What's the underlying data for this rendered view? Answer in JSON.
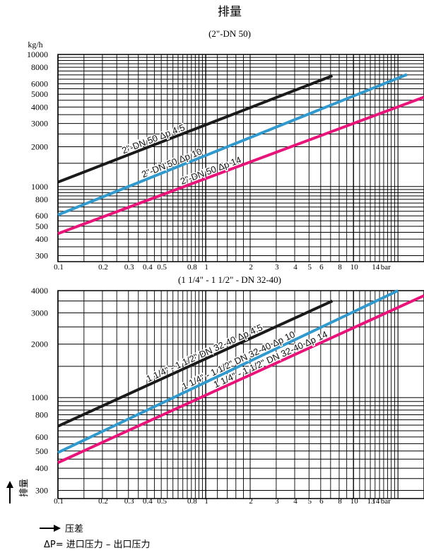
{
  "title": "排量",
  "chart_data": [
    {
      "type": "line",
      "subtitle": "(2\"-DN 50)",
      "ylabel": "kg/h",
      "y_scale": "log",
      "x_scale": "log",
      "ylim": [
        270,
        10000
      ],
      "xlim": [
        0.1,
        30
      ],
      "y_ticks": [
        {
          "value": 300,
          "label": "300"
        },
        {
          "value": 400,
          "label": "400"
        },
        {
          "value": 500,
          "label": "500"
        },
        {
          "value": 600,
          "label": "600"
        },
        {
          "value": 800,
          "label": "800"
        },
        {
          "value": 1000,
          "label": "1000"
        },
        {
          "value": 2000,
          "label": "2000"
        },
        {
          "value": 3000,
          "label": "3000"
        },
        {
          "value": 4000,
          "label": "4000"
        },
        {
          "value": 5000,
          "label": "5000"
        },
        {
          "value": 6000,
          "label": "6000"
        },
        {
          "value": 8000,
          "label": "8000"
        },
        {
          "value": 10000,
          "label": "10000"
        }
      ],
      "x_ticks": [
        {
          "value": 0.1,
          "label": "0.1"
        },
        {
          "value": 0.2,
          "label": "0.2"
        },
        {
          "value": 0.3,
          "label": "0.3"
        },
        {
          "value": 0.4,
          "label": "0.4"
        },
        {
          "value": 0.5,
          "label": "0.5"
        },
        {
          "value": 0.8,
          "label": "0.8"
        },
        {
          "value": 1,
          "label": "1"
        },
        {
          "value": 2,
          "label": "2"
        },
        {
          "value": 3,
          "label": "3"
        },
        {
          "value": 4,
          "label": "4"
        },
        {
          "value": 5,
          "label": "5"
        },
        {
          "value": 6,
          "label": "6"
        },
        {
          "value": 8,
          "label": "8"
        },
        {
          "value": 10,
          "label": "10"
        },
        {
          "value": 14,
          "label": "14"
        }
      ],
      "x_unit": "bar",
      "series": [
        {
          "name": "2\"-DN 50 Δp 4.5",
          "color": "#1a1a1a",
          "x": [
            0.1,
            7.2
          ],
          "y": [
            1080,
            6900
          ]
        },
        {
          "name": "2\"-DN 50 Δp 10",
          "color": "#3399cc",
          "x": [
            0.1,
            23
          ],
          "y": [
            610,
            7050
          ]
        },
        {
          "name": "2\"-DN 50 Δp 14",
          "color": "#e6157a",
          "x": [
            0.1,
            30
          ],
          "y": [
            440,
            4750
          ]
        }
      ]
    },
    {
      "type": "line",
      "subtitle": "(1 1/4\" - 1 1/2\" - DN 32-40)",
      "ylabel": "",
      "y_scale": "log",
      "x_scale": "log",
      "ylim": [
        270,
        4000
      ],
      "xlim": [
        0.1,
        30
      ],
      "y_ticks": [
        {
          "value": 300,
          "label": "300"
        },
        {
          "value": 400,
          "label": "400"
        },
        {
          "value": 500,
          "label": "500"
        },
        {
          "value": 600,
          "label": "600"
        },
        {
          "value": 800,
          "label": "800"
        },
        {
          "value": 1000,
          "label": "1000"
        },
        {
          "value": 2000,
          "label": "2000"
        },
        {
          "value": 3000,
          "label": "3000"
        },
        {
          "value": 4000,
          "label": "4000"
        }
      ],
      "x_ticks": [
        {
          "value": 0.1,
          "label": "0.1"
        },
        {
          "value": 0.2,
          "label": "0.2"
        },
        {
          "value": 0.3,
          "label": "0.3"
        },
        {
          "value": 0.4,
          "label": "0.4"
        },
        {
          "value": 0.5,
          "label": "0.5"
        },
        {
          "value": 0.8,
          "label": "0.8"
        },
        {
          "value": 1,
          "label": "1"
        },
        {
          "value": 2,
          "label": "2"
        },
        {
          "value": 3,
          "label": "3"
        },
        {
          "value": 4,
          "label": "4"
        },
        {
          "value": 5,
          "label": "5"
        },
        {
          "value": 6,
          "label": "6"
        },
        {
          "value": 8,
          "label": "8"
        },
        {
          "value": 10,
          "label": "10"
        },
        {
          "value": 13,
          "label": "13"
        },
        {
          "value": 14,
          "label": "14"
        }
      ],
      "x_unit": "bar",
      "series": [
        {
          "name": "1 1/4\" - 1 1/2\" DN 32-40 Δp 4.5",
          "color": "#1a1a1a",
          "x": [
            0.1,
            7.2
          ],
          "y": [
            690,
            3500
          ]
        },
        {
          "name": "1 1/4\" - 1 1/2\" DN 32-40 Δp 10",
          "color": "#3399cc",
          "x": [
            0.1,
            20
          ],
          "y": [
            490,
            4000
          ]
        },
        {
          "name": "1 1/4\" - 1 1/2\" DN 32-40 Δp 14",
          "color": "#e6157a",
          "x": [
            0.1,
            30
          ],
          "y": [
            430,
            3750
          ]
        }
      ]
    }
  ],
  "axis_labels": {
    "y_arrow": "排量",
    "x_arrow": "压差",
    "delta_note": "ΔP= 进口压力 – 出口压力"
  }
}
